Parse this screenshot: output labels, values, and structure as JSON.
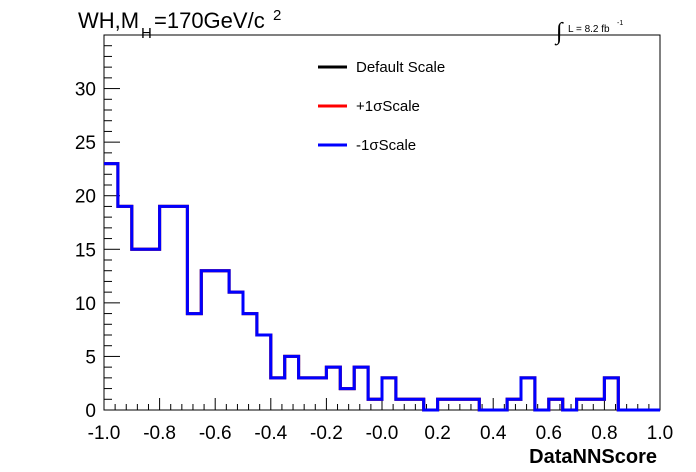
{
  "title": {
    "main": "WH,M",
    "sub": "H",
    "rest": "=170GeV/c",
    "sup": "2"
  },
  "lumi": {
    "integral": "∫",
    "text": "L = 8.2 fb",
    "sup": "-1"
  },
  "chart_data": {
    "type": "line",
    "xlabel": "DataNNScore",
    "ylabel": "",
    "xlim": [
      -1.0,
      1.0
    ],
    "ylim": [
      0,
      35
    ],
    "x_ticks": [
      "-1.0",
      "-0.8",
      "-0.6",
      "-0.4",
      "-0.2",
      "-0.0",
      "0.2",
      "0.4",
      "0.6",
      "0.8",
      "1.0"
    ],
    "y_ticks": [
      "0",
      "5",
      "10",
      "15",
      "20",
      "25",
      "30"
    ],
    "bin_edges": [
      -1.0,
      -0.95,
      -0.9,
      -0.85,
      -0.8,
      -0.75,
      -0.7,
      -0.65,
      -0.6,
      -0.55,
      -0.5,
      -0.45,
      -0.4,
      -0.35,
      -0.3,
      -0.25,
      -0.2,
      -0.15,
      -0.1,
      -0.05,
      0.0,
      0.05,
      0.1,
      0.15,
      0.2,
      0.25,
      0.3,
      0.35,
      0.4,
      0.45,
      0.5,
      0.55,
      0.6,
      0.65,
      0.7,
      0.75,
      0.8,
      0.85,
      0.9,
      0.95,
      1.0
    ],
    "series": [
      {
        "name": "Default Scale",
        "color": "#000000",
        "values": [
          23,
          19,
          15,
          15,
          19,
          19,
          9,
          13,
          13,
          11,
          9,
          7,
          3,
          5,
          3,
          3,
          4,
          2,
          4,
          1,
          3,
          1,
          1,
          0,
          1,
          1,
          1,
          0,
          0,
          1,
          3,
          0,
          1,
          0,
          1,
          1,
          3,
          0,
          0,
          0
        ]
      },
      {
        "name": "+1σScale",
        "color": "#ff0000",
        "values": [
          23,
          19,
          15,
          15,
          19,
          19,
          9,
          13,
          13,
          11,
          9,
          7,
          3,
          5,
          3,
          3,
          4,
          2,
          4,
          1,
          3,
          1,
          1,
          0,
          1,
          1,
          1,
          0,
          0,
          1,
          3,
          0,
          1,
          0,
          1,
          1,
          3,
          0,
          0,
          0
        ]
      },
      {
        "name": "-1σScale",
        "color": "#0000ff",
        "values": [
          23,
          19,
          15,
          15,
          19,
          19,
          9,
          13,
          13,
          11,
          9,
          7,
          3,
          5,
          3,
          3,
          4,
          2,
          4,
          1,
          3,
          1,
          1,
          0,
          1,
          1,
          1,
          0,
          0,
          1,
          3,
          0,
          1,
          0,
          1,
          1,
          3,
          0,
          0,
          0
        ]
      }
    ],
    "legend_placement": "top-center",
    "grid": false
  }
}
